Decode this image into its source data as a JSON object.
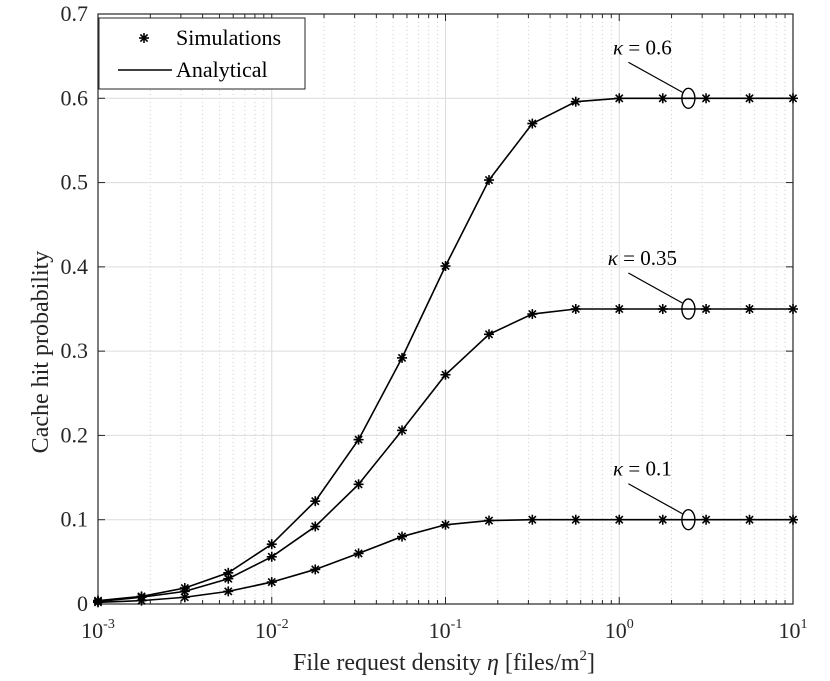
{
  "chart_data": {
    "type": "line",
    "xscale": "log",
    "xlabel": "File request density",
    "xlabel_symbol": "η",
    "xlabel_unit": "[files/m",
    "xlabel_unit_exp": "2",
    "xlabel_unit_close": "]",
    "ylabel": "Cache hit probability",
    "xlim": [
      0.001,
      10
    ],
    "ylim": [
      0,
      0.7
    ],
    "grid": true,
    "x_ticks": [
      {
        "base": "10",
        "exp": "-3",
        "value": 0.001
      },
      {
        "base": "10",
        "exp": "-2",
        "value": 0.01
      },
      {
        "base": "10",
        "exp": "-1",
        "value": 0.1
      },
      {
        "base": "10",
        "exp": "0",
        "value": 1
      },
      {
        "base": "10",
        "exp": "1",
        "value": 10
      }
    ],
    "y_ticks": [
      {
        "label": "0",
        "value": 0
      },
      {
        "label": "0.1",
        "value": 0.1
      },
      {
        "label": "0.2",
        "value": 0.2
      },
      {
        "label": "0.3",
        "value": 0.3
      },
      {
        "label": "0.4",
        "value": 0.4
      },
      {
        "label": "0.5",
        "value": 0.5
      },
      {
        "label": "0.6",
        "value": 0.6
      },
      {
        "label": "0.7",
        "value": 0.7
      }
    ],
    "legend": {
      "position": "top-left",
      "entries": [
        {
          "label": "Simulations",
          "style": "asterisk"
        },
        {
          "label": "Analytical",
          "style": "solid-line"
        }
      ]
    },
    "x": [
      0.001,
      0.00178,
      0.00316,
      0.00562,
      0.01,
      0.0178,
      0.0316,
      0.0562,
      0.1,
      0.178,
      0.316,
      0.562,
      1,
      1.78,
      3.16,
      5.62,
      10
    ],
    "series": [
      {
        "name": "kappa = 0.6",
        "kappa": "0.6",
        "values": [
          0.004,
          0.009,
          0.019,
          0.037,
          0.071,
          0.122,
          0.195,
          0.292,
          0.401,
          0.503,
          0.57,
          0.596,
          0.6,
          0.6,
          0.6,
          0.6,
          0.6
        ]
      },
      {
        "name": "kappa = 0.35",
        "kappa": "0.35",
        "values": [
          0.003,
          0.008,
          0.015,
          0.03,
          0.056,
          0.092,
          0.142,
          0.206,
          0.272,
          0.32,
          0.344,
          0.35,
          0.35,
          0.35,
          0.35,
          0.35,
          0.35
        ]
      },
      {
        "name": "kappa = 0.1",
        "kappa": "0.1",
        "values": [
          0.002,
          0.004,
          0.008,
          0.015,
          0.026,
          0.041,
          0.06,
          0.08,
          0.094,
          0.099,
          0.1,
          0.1,
          0.1,
          0.1,
          0.1,
          0.1,
          0.1
        ]
      }
    ],
    "annotations": [
      {
        "symbol": "κ",
        "text": "= 0.6",
        "series": 0
      },
      {
        "symbol": "κ",
        "text": "= 0.35",
        "series": 1
      },
      {
        "symbol": "κ",
        "text": "= 0.1",
        "series": 2
      }
    ]
  }
}
